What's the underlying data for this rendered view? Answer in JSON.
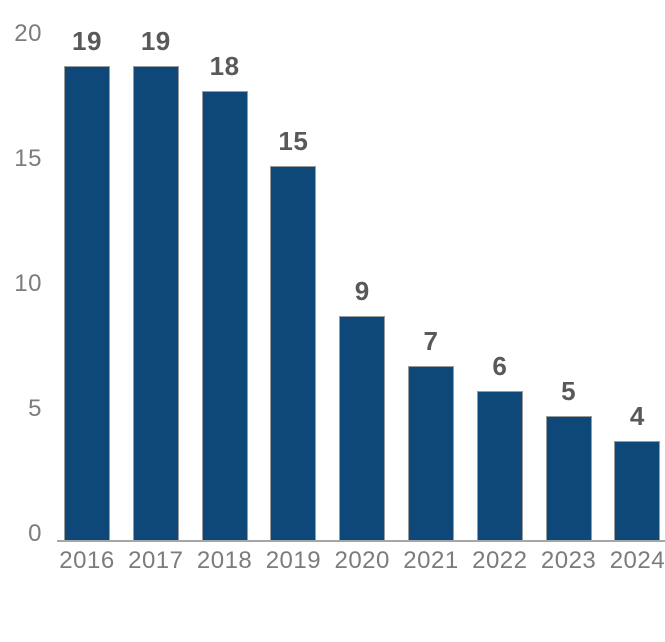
{
  "chart_data": {
    "type": "bar",
    "categories": [
      "2016",
      "2017",
      "2018",
      "2019",
      "2020",
      "2021",
      "2022",
      "2023",
      "2024"
    ],
    "values": [
      19,
      19,
      18,
      15,
      9,
      7,
      6,
      5,
      4
    ],
    "data_labels": [
      "19",
      "19",
      "18",
      "15",
      "9",
      "7",
      "6",
      "5",
      "4"
    ],
    "title": "",
    "xlabel": "",
    "ylabel": "",
    "ylim": [
      0,
      20
    ],
    "yticks": [
      0,
      5,
      10,
      15,
      20
    ],
    "grid": false,
    "legend": false,
    "colors": {
      "bar_fill": "#0E4878",
      "bar_border": "#9B9B9B",
      "axis_line": "#A6A6A6",
      "tick_label": "#7C7C7C",
      "data_label": "#595959",
      "background": "#FFFFFF"
    }
  }
}
